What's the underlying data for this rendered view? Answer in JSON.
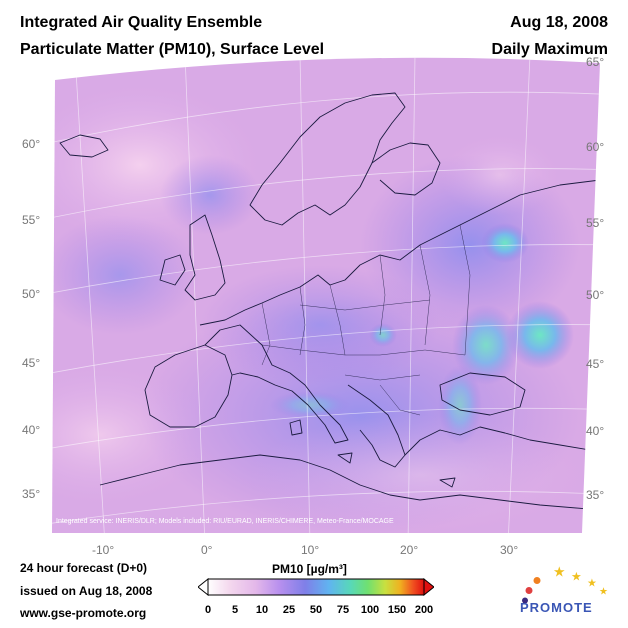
{
  "header": {
    "title": "Integrated Air Quality Ensemble",
    "subtitle": "Particulate Matter (PM10), Surface Level",
    "date": "Aug 18, 2008",
    "statistic": "Daily Maximum"
  },
  "map": {
    "lat_labels_left": [
      "60°",
      "55°",
      "50°",
      "45°",
      "40°",
      "35°"
    ],
    "lat_labels_right": [
      "65°",
      "60°",
      "55°",
      "50°",
      "45°",
      "40°",
      "35°"
    ],
    "lon_labels": [
      "-10°",
      "0°",
      "10°",
      "20°",
      "30°"
    ],
    "credit": "Integrated service: INERIS/DLR; Models included: RIU/EURAD, INERIS/CHIMERE, Meteo-France/MOCAGE",
    "colors": {
      "background": "#d8a8e8",
      "low": "#f0c8ec",
      "mid": "#9a7ae8",
      "high": "#6ad8c8",
      "coast": "#1a1a3a"
    }
  },
  "footer": {
    "forecast": "24 hour forecast (D+0)",
    "issued": "issued on Aug 18, 2008",
    "website": "www.gse-promote.org"
  },
  "colorbar": {
    "title": "PM10 [µg/m³]",
    "ticks": [
      "0",
      "5",
      "10",
      "25",
      "50",
      "75",
      "100",
      "150",
      "200"
    ],
    "colors": [
      "#ffffff",
      "#f4d8ee",
      "#e4b8ea",
      "#b890ee",
      "#7f7fe8",
      "#60b4f0",
      "#58d8b8",
      "#70e070",
      "#c8e040",
      "#f0b020",
      "#f05020",
      "#e01010"
    ]
  },
  "logo": {
    "text": "PROMOTE"
  }
}
